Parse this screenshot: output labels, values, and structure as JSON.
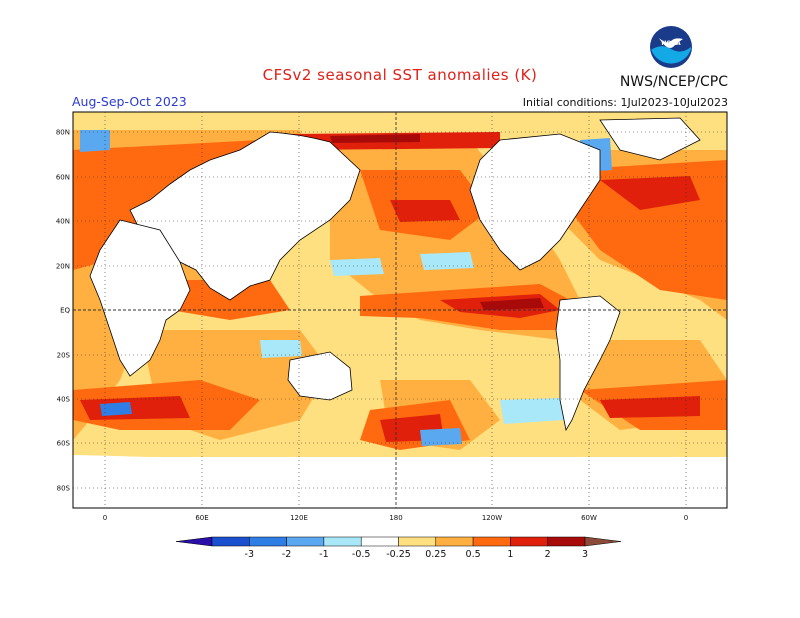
{
  "header": {
    "title": "CFSv2 seasonal SST anomalies (K)",
    "agency": "NWS/NCEP/CPC",
    "season": "Aug-Sep-Oct 2023",
    "initial_conditions": "Initial conditions: 1Jul2023-10Jul2023",
    "logo_text": "NOAA"
  },
  "map": {
    "lat_labels": [
      "80N",
      "60N",
      "40N",
      "20N",
      "EQ",
      "20S",
      "40S",
      "60S",
      "80S"
    ],
    "lon_labels": [
      "0",
      "60E",
      "120E",
      "180",
      "120W",
      "60W",
      "0"
    ]
  },
  "colorbar": {
    "labels": [
      "-3",
      "-2",
      "-1",
      "-0.5",
      "-0.25",
      "0.25",
      "0.5",
      "1",
      "2",
      "3"
    ],
    "colors": [
      "#2a0fa8",
      "#1a4fd0",
      "#2f7ee6",
      "#5aa8f0",
      "#a8e8f8",
      "#ffffff",
      "#ffe080",
      "#ffb040",
      "#ff6a10",
      "#e0200a",
      "#a80a0a",
      "#8c4a38"
    ]
  }
}
